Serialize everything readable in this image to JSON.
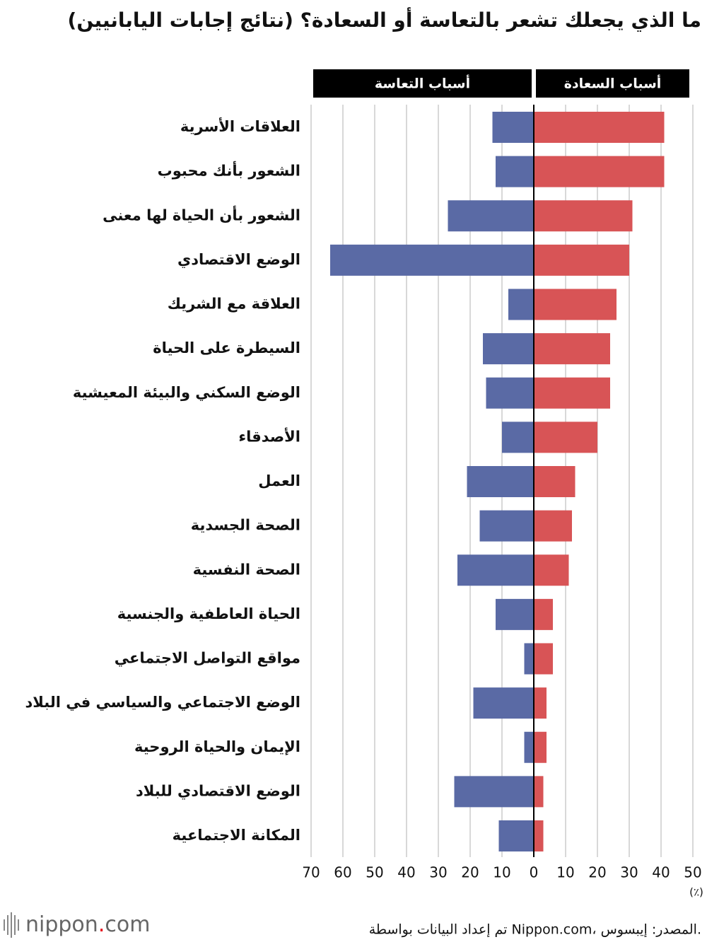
{
  "chart_data": {
    "type": "diverging_bar",
    "title": "ما الذي يجعلك تشعر بالتعاسة أو السعادة؟ (نتائج إجابات اليابانيين)",
    "categories": [
      "العلاقات الأسرية",
      "الشعور بأنك محبوب",
      "الشعور بأن الحياة لها معنى",
      "الوضع الاقتصادي",
      "العلاقة مع الشريك",
      "السيطرة على الحياة",
      "الوضع السكني والبيئة المعيشية",
      "الأصدقاء",
      "العمل",
      "الصحة الجسدية",
      "الصحة النفسية",
      "الحياة العاطفية والجنسية",
      "مواقع التواصل الاجتماعي",
      "الوضع الاجتماعي والسياسي في البلاد",
      "الإيمان والحياة الروحية",
      "الوضع الاقتصادي للبلاد",
      "المكانة الاجتماعية"
    ],
    "series": [
      {
        "name": "أسباب التعاسة",
        "color": "#5a6aa5",
        "side": "left",
        "values": [
          13,
          12,
          27,
          64,
          8,
          16,
          15,
          10,
          21,
          17,
          24,
          12,
          3,
          19,
          3,
          25,
          11
        ]
      },
      {
        "name": "أسباب السعادة",
        "color": "#d85456",
        "side": "right",
        "values": [
          41,
          41,
          31,
          30,
          26,
          24,
          24,
          20,
          13,
          12,
          11,
          6,
          6,
          4,
          4,
          3,
          3
        ]
      }
    ],
    "xlim_left": [
      70,
      0
    ],
    "xticks_left": [
      70,
      60,
      50,
      40,
      30,
      20,
      10
    ],
    "xlim_right": [
      0,
      50
    ],
    "xticks_right": [
      0,
      10,
      20,
      30,
      40,
      50
    ],
    "unit_label": "(٪)",
    "grid": true,
    "logo": [
      "nippon",
      ".",
      "com"
    ],
    "source": "تم إعداد البيانات بواسطة Nippon.com، المصدر: إيبسوس."
  }
}
